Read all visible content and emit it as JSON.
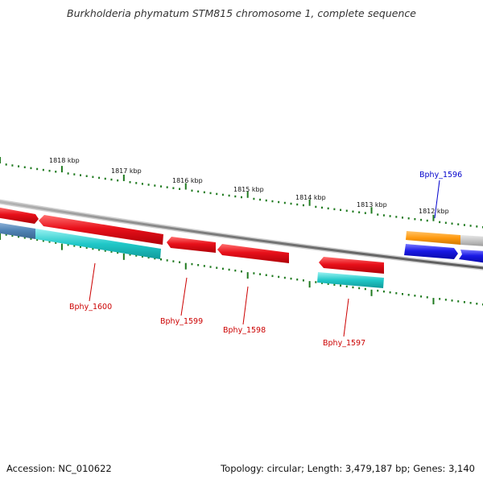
{
  "title": "Burkholderia phymatum STM815 chromosome 1, complete sequence",
  "footer": {
    "accession": "Accession: NC_010622",
    "topology": "Topology: circular; Length: 3,479,187 bp; Genes: 3,140"
  },
  "colors": {
    "backbone": "#8c8c8c",
    "forward_gene": "#e8101a",
    "forward_gene_highlight": "#ff6a6a",
    "reverse_cds": "#20c8c8",
    "reverse_cds_highlight": "#8ff0f0",
    "blue_gene": "#1a1ae6",
    "orange_gene": "#ff9a10",
    "tick": "#1f7a1f",
    "label_red": "#cc0000",
    "label_blue": "#0000cc"
  },
  "kbp_ticks": [
    {
      "label": "1818 kbp"
    },
    {
      "label": "1817 kbp"
    },
    {
      "label": "1816 kbp"
    },
    {
      "label": "1815 kbp"
    },
    {
      "label": "1814 kbp"
    },
    {
      "label": "1813 kbp"
    },
    {
      "label": "1812 kbp"
    }
  ],
  "genes": [
    {
      "name": "Bphy_1600",
      "color_key": "label_red"
    },
    {
      "name": "Bphy_1599",
      "color_key": "label_red"
    },
    {
      "name": "Bphy_1598",
      "color_key": "label_red"
    },
    {
      "name": "Bphy_1597",
      "color_key": "label_red"
    },
    {
      "name": "Bphy_1596",
      "color_key": "label_blue"
    }
  ]
}
